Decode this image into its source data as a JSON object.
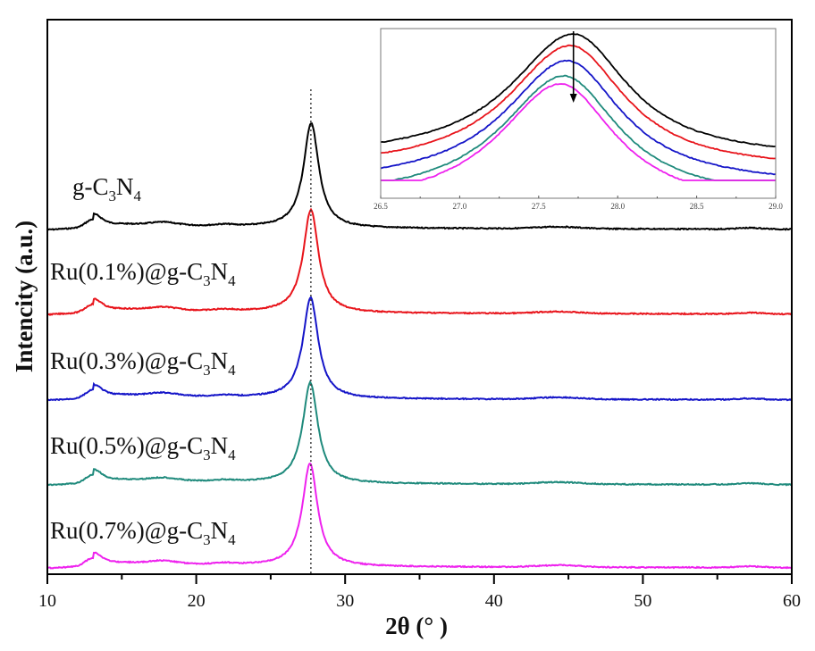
{
  "chart_data": {
    "type": "line",
    "title": "",
    "xlabel": "2θ (° )",
    "ylabel": "Intencity (a.u.)",
    "xlim": [
      10,
      60
    ],
    "xticks": [
      "10",
      "20",
      "30",
      "40",
      "50",
      "60"
    ],
    "grid": false,
    "reference_line": {
      "x": 27.7,
      "style": "dotted"
    },
    "series": [
      {
        "name": "g-C3N4",
        "label_parts": [
          "g-C",
          "3",
          "N",
          "4"
        ],
        "color": "#000000",
        "offset": 4,
        "peak_x": 27.72,
        "peak_height": 1.0
      },
      {
        "name": "Ru(0.1%)@g-C3N4",
        "label_parts": [
          "Ru(0.1%)@g-C",
          "3",
          "N",
          "4"
        ],
        "color": "#e8141b",
        "offset": 3,
        "peak_x": 27.7,
        "peak_height": 0.98
      },
      {
        "name": "Ru(0.3%)@g-C3N4",
        "label_parts": [
          "Ru(0.3%)@g-C",
          "3",
          "N",
          "4"
        ],
        "color": "#1515c8",
        "offset": 2,
        "peak_x": 27.68,
        "peak_height": 0.96
      },
      {
        "name": "Ru(0.5%)@g-C3N4",
        "label_parts": [
          "Ru(0.5%)@g-C",
          "3",
          "N",
          "4"
        ],
        "color": "#1f8a7c",
        "offset": 1,
        "peak_x": 27.66,
        "peak_height": 0.96
      },
      {
        "name": "Ru(0.7%)@g-C3N4",
        "label_parts": [
          "Ru(0.7%)@g-C",
          "3",
          "N",
          "4"
        ],
        "color": "#ee22ee",
        "offset": 0,
        "peak_x": 27.64,
        "peak_height": 0.98
      }
    ],
    "inset": {
      "xlim": [
        26.5,
        29.0
      ],
      "xticks": [
        "26.5",
        "27.0",
        "27.5",
        "28.0",
        "28.5",
        "29.0"
      ],
      "arrow_x": 27.72,
      "arrow_direction": "down"
    }
  }
}
